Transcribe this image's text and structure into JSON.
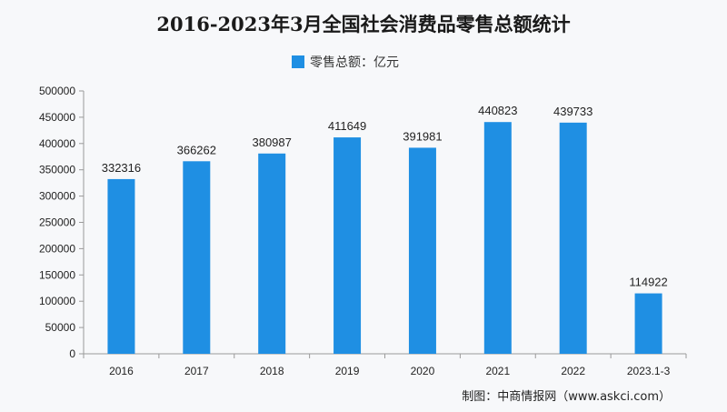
{
  "colors": {
    "bar": "#1f8fe3",
    "axis": "#9a9a9a",
    "background": "#f7f8fa"
  },
  "chart_data": {
    "type": "bar",
    "title": "2016-2023年3月全国社会消费品零售总额统计",
    "legend": [
      "零售总额：亿元"
    ],
    "legend_placement": "top-center",
    "categories": [
      "2016",
      "2017",
      "2018",
      "2019",
      "2020",
      "2021",
      "2022",
      "2023.1-3"
    ],
    "series": [
      {
        "name": "零售总额：亿元",
        "values": [
          332316,
          366262,
          380987,
          411649,
          391981,
          440823,
          439733,
          114922
        ]
      }
    ],
    "ylim": [
      0,
      500000
    ],
    "yticks": [
      "0",
      "50000",
      "100000",
      "150000",
      "200000",
      "250000",
      "300000",
      "350000",
      "400000",
      "450000",
      "500000"
    ],
    "grid": false,
    "source": "制图：中商情报网（www.askci.com）"
  }
}
